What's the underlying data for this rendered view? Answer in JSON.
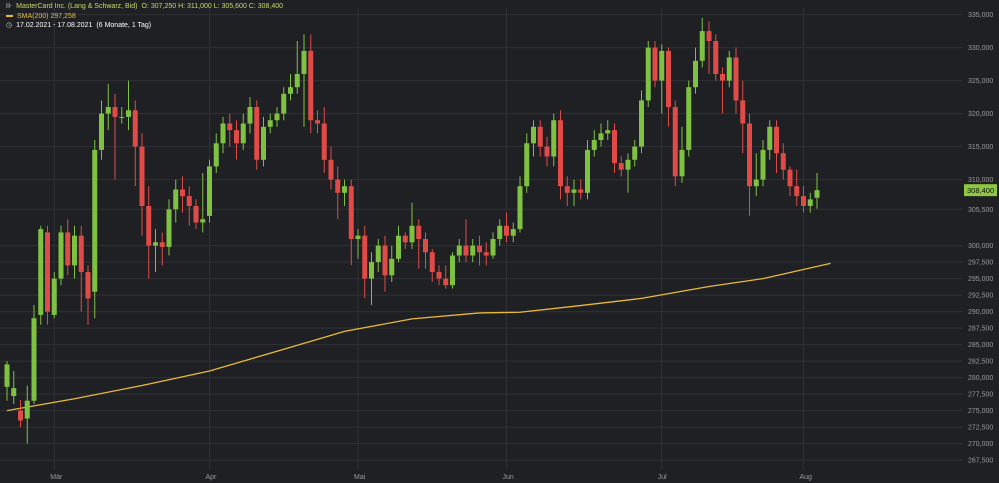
{
  "legend": {
    "instrument_icon": "chart-icon",
    "instrument": "MasterCard Inc. (Lang & Schwarz, Bid)",
    "ohlc": "O: 307,250  H: 311,000  L: 305,600  C: 308,400",
    "sma_label": "SMA(200)  297,258",
    "clock_icon": "clock-icon",
    "range": "17.02.2021 - 17.08.2021",
    "range_note": "(6 Monate, 1 Tag)"
  },
  "colors": {
    "background": "#1f2024",
    "grid": "#2e3036",
    "up": "#7fc241",
    "down": "#e04b47",
    "sma": "#e8b93a",
    "price_tag": "#8dc63f",
    "axis_text": "#9a9a9a"
  },
  "chart_data": {
    "type": "candlestick",
    "ylim": [
      266,
      336
    ],
    "yticks": [
      "267,500",
      "270,000",
      "272,500",
      "275,000",
      "277,500",
      "280,000",
      "282,500",
      "285,000",
      "287,500",
      "290,000",
      "292,500",
      "295,000",
      "297,500",
      "300,000",
      "305,500",
      "310,000",
      "315,000",
      "320,000",
      "325,000",
      "330,000",
      "335,000"
    ],
    "ytick_values": [
      267.5,
      270,
      272.5,
      275,
      277.5,
      280,
      282.5,
      285,
      287.5,
      290,
      292.5,
      295,
      297.5,
      300,
      305.5,
      310,
      315,
      320,
      325,
      330,
      335
    ],
    "xticks": [
      "Mär",
      "Apr",
      "Mai",
      "Jun",
      "Jul",
      "Aug"
    ],
    "xtick_index": [
      7,
      30,
      52,
      74,
      97,
      118
    ],
    "last_price_label": "308,400",
    "last_price": 308.4,
    "candles": [
      [
        278.6,
        282.0,
        276.5,
        282.5
      ],
      [
        277.2,
        278.4,
        276.0,
        281.0
      ],
      [
        275.0,
        273.5,
        272.5,
        276.6
      ],
      [
        273.8,
        276.5,
        270.0,
        278.8
      ],
      [
        276.5,
        289.0,
        276.0,
        291.0
      ],
      [
        289.5,
        302.5,
        288.0,
        303.0
      ],
      [
        302.0,
        290.0,
        288.0,
        303.0
      ],
      [
        289.5,
        295.0,
        289.0,
        296.0
      ],
      [
        295.0,
        302.0,
        294.0,
        303.0
      ],
      [
        302.0,
        297.0,
        295.5,
        304.0
      ],
      [
        297.0,
        301.5,
        295.0,
        303.0
      ],
      [
        301.5,
        296.0,
        290.0,
        303.0
      ],
      [
        296.0,
        292.0,
        288.0,
        297.0
      ],
      [
        293.0,
        314.5,
        289.0,
        316.0
      ],
      [
        314.5,
        320.0,
        313.0,
        322.0
      ],
      [
        320.0,
        321.0,
        317.5,
        324.5
      ],
      [
        321.0,
        319.5,
        310.0,
        323.0
      ],
      [
        319.5,
        319.5,
        318.5,
        321.0
      ],
      [
        319.5,
        320.5,
        317.5,
        325.0
      ],
      [
        320.5,
        315.0,
        309.0,
        322.0
      ],
      [
        315.0,
        306.0,
        301.5,
        317.0
      ],
      [
        306.0,
        300.0,
        295.0,
        309.0
      ],
      [
        300.0,
        300.5,
        296.0,
        302.5
      ],
      [
        300.5,
        299.8,
        297.0,
        302.0
      ],
      [
        299.8,
        305.5,
        298.5,
        307.0
      ],
      [
        305.5,
        308.5,
        303.5,
        310.0
      ],
      [
        308.5,
        307.5,
        305.0,
        310.5
      ],
      [
        307.5,
        306.0,
        303.0,
        309.0
      ],
      [
        306.0,
        303.5,
        302.5,
        307.0
      ],
      [
        303.5,
        304.0,
        302.0,
        311.0
      ],
      [
        304.5,
        312.0,
        303.5,
        313.0
      ],
      [
        312.0,
        315.5,
        311.0,
        317.0
      ],
      [
        315.5,
        318.5,
        314.0,
        319.5
      ],
      [
        318.5,
        317.5,
        315.0,
        320.0
      ],
      [
        317.5,
        315.5,
        313.0,
        319.0
      ],
      [
        315.5,
        318.5,
        314.5,
        320.0
      ],
      [
        318.5,
        321.0,
        317.0,
        322.5
      ],
      [
        321.0,
        313.0,
        311.5,
        322.0
      ],
      [
        313.0,
        318.0,
        312.0,
        319.5
      ],
      [
        318.0,
        319.0,
        317.0,
        320.0
      ],
      [
        319.0,
        320.0,
        318.0,
        321.0
      ],
      [
        320.0,
        323.0,
        319.0,
        324.0
      ],
      [
        323.0,
        324.0,
        322.0,
        326.0
      ],
      [
        324.0,
        326.0,
        323.0,
        331.0
      ],
      [
        326.0,
        329.5,
        318.0,
        332.0
      ],
      [
        329.5,
        319.0,
        317.0,
        332.0
      ],
      [
        319.0,
        318.5,
        317.0,
        320.5
      ],
      [
        318.5,
        313.0,
        311.0,
        321.0
      ],
      [
        313.0,
        310.0,
        308.5,
        315.0
      ],
      [
        310.0,
        308.0,
        304.0,
        312.0
      ],
      [
        308.0,
        309.0,
        306.0,
        310.0
      ],
      [
        309.0,
        301.0,
        297.0,
        310.0
      ],
      [
        301.0,
        301.5,
        298.0,
        302.5
      ],
      [
        301.5,
        295.0,
        292.0,
        303.0
      ],
      [
        295.0,
        297.5,
        291.0,
        299.0
      ],
      [
        297.5,
        300.0,
        296.0,
        301.0
      ],
      [
        300.0,
        295.5,
        293.0,
        301.5
      ],
      [
        295.5,
        298.0,
        294.5,
        300.0
      ],
      [
        298.0,
        301.5,
        297.5,
        303.0
      ],
      [
        301.5,
        300.5,
        299.5,
        302.0
      ],
      [
        300.5,
        303.0,
        299.5,
        306.5
      ],
      [
        303.0,
        301.0,
        296.5,
        304.0
      ],
      [
        301.0,
        299.0,
        296.5,
        302.0
      ],
      [
        299.0,
        296.0,
        294.5,
        299.5
      ],
      [
        296.0,
        295.0,
        294.0,
        297.0
      ],
      [
        295.0,
        294.0,
        293.5,
        297.0
      ],
      [
        294.0,
        298.5,
        293.5,
        299.0
      ],
      [
        298.5,
        300.0,
        297.5,
        301.0
      ],
      [
        300.0,
        298.5,
        297.5,
        304.0
      ],
      [
        298.5,
        300.0,
        297.5,
        301.0
      ],
      [
        300.0,
        299.0,
        297.0,
        301.5
      ],
      [
        299.0,
        298.5,
        297.0,
        300.5
      ],
      [
        298.5,
        301.0,
        298.0,
        302.0
      ],
      [
        301.0,
        303.0,
        300.0,
        304.0
      ],
      [
        303.0,
        301.5,
        300.5,
        305.0
      ],
      [
        301.5,
        302.5,
        300.5,
        303.5
      ],
      [
        302.5,
        309.0,
        302.0,
        310.5
      ],
      [
        309.0,
        315.5,
        308.0,
        317.0
      ],
      [
        315.5,
        318.0,
        313.5,
        319.0
      ],
      [
        318.0,
        315.0,
        313.5,
        319.0
      ],
      [
        315.0,
        313.5,
        312.0,
        316.5
      ],
      [
        313.5,
        319.0,
        312.0,
        320.0
      ],
      [
        319.0,
        309.0,
        307.0,
        320.5
      ],
      [
        309.0,
        308.0,
        306.0,
        310.5
      ],
      [
        308.0,
        308.5,
        306.0,
        310.0
      ],
      [
        308.5,
        308.0,
        307.0,
        310.0
      ],
      [
        308.0,
        314.5,
        307.0,
        316.0
      ],
      [
        314.5,
        316.0,
        313.5,
        317.5
      ],
      [
        316.0,
        317.0,
        315.0,
        318.5
      ],
      [
        317.0,
        317.5,
        316.0,
        319.0
      ],
      [
        317.5,
        312.5,
        311.0,
        318.5
      ],
      [
        312.5,
        311.5,
        310.5,
        313.5
      ],
      [
        311.5,
        313.0,
        308.0,
        314.0
      ],
      [
        313.0,
        315.0,
        312.0,
        316.0
      ],
      [
        315.0,
        322.0,
        314.0,
        323.5
      ],
      [
        322.0,
        330.0,
        321.0,
        331.0
      ],
      [
        330.0,
        325.0,
        324.0,
        331.0
      ],
      [
        325.0,
        329.5,
        320.0,
        330.5
      ],
      [
        329.5,
        321.0,
        318.0,
        330.0
      ],
      [
        321.0,
        310.5,
        309.0,
        322.0
      ],
      [
        310.5,
        314.5,
        309.5,
        318.0
      ],
      [
        314.5,
        324.0,
        313.5,
        325.0
      ],
      [
        324.0,
        328.0,
        323.0,
        330.0
      ],
      [
        328.0,
        332.5,
        327.0,
        334.5
      ],
      [
        332.5,
        331.0,
        326.0,
        334.0
      ],
      [
        331.0,
        326.0,
        325.0,
        332.0
      ],
      [
        326.0,
        325.0,
        320.0,
        327.0
      ],
      [
        325.0,
        328.5,
        324.0,
        329.5
      ],
      [
        328.5,
        322.0,
        320.0,
        330.0
      ],
      [
        322.0,
        318.5,
        314.0,
        325.0
      ],
      [
        318.5,
        309.0,
        304.5,
        320.0
      ],
      [
        309.0,
        310.0,
        307.5,
        314.0
      ],
      [
        310.0,
        314.5,
        309.0,
        316.0
      ],
      [
        314.5,
        318.0,
        313.0,
        319.0
      ],
      [
        318.0,
        314.0,
        311.0,
        319.0
      ],
      [
        314.0,
        311.5,
        310.0,
        315.5
      ],
      [
        311.5,
        309.0,
        307.5,
        312.0
      ],
      [
        309.0,
        307.5,
        306.0,
        311.5
      ],
      [
        307.5,
        306.0,
        305.0,
        309.0
      ],
      [
        306.0,
        307.0,
        305.0,
        308.0
      ],
      [
        307.25,
        308.4,
        305.6,
        311.0
      ]
    ],
    "sma": [
      {
        "i": 0,
        "v": 275.0
      },
      {
        "i": 10,
        "v": 276.8
      },
      {
        "i": 20,
        "v": 278.8
      },
      {
        "i": 30,
        "v": 281.0
      },
      {
        "i": 40,
        "v": 284.0
      },
      {
        "i": 50,
        "v": 287.0
      },
      {
        "i": 60,
        "v": 288.9
      },
      {
        "i": 70,
        "v": 289.8
      },
      {
        "i": 76,
        "v": 289.9
      },
      {
        "i": 84,
        "v": 290.8
      },
      {
        "i": 94,
        "v": 292.0
      },
      {
        "i": 104,
        "v": 293.8
      },
      {
        "i": 112,
        "v": 295.0
      },
      {
        "i": 122,
        "v": 297.3
      }
    ]
  }
}
